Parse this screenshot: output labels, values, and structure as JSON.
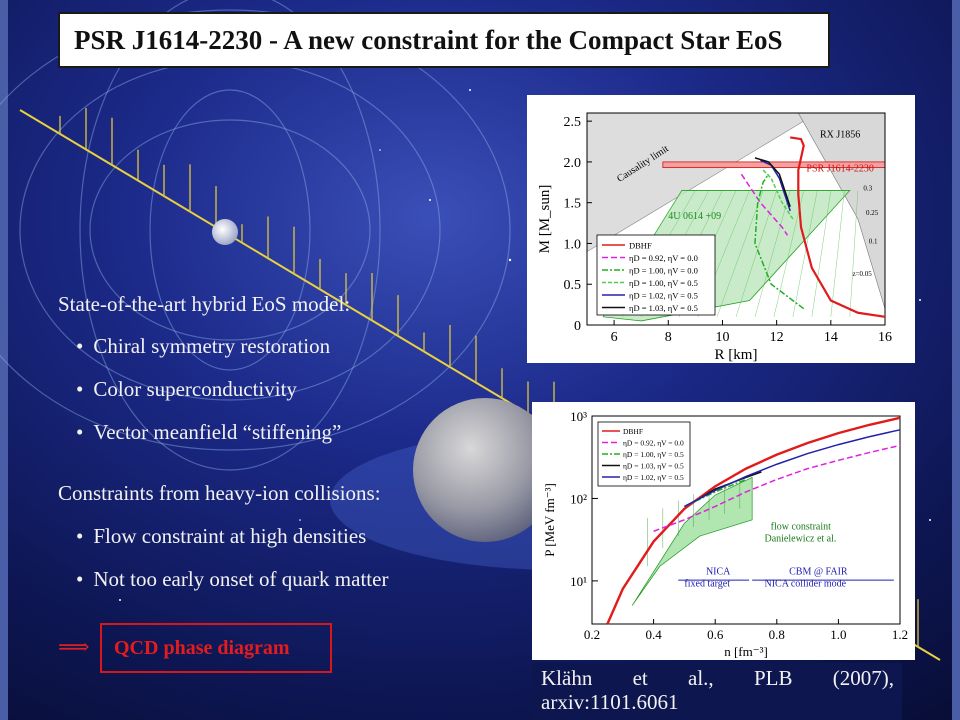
{
  "title": "PSR J1614-2230 - A new constraint for the Compact Star EoS",
  "section1": {
    "heading": "State-of-the-art hybrid EoS model:",
    "items": [
      "Chiral symmetry restoration",
      "Color superconductivity",
      "Vector meanfield “stiffening”"
    ]
  },
  "section2": {
    "heading": "Constraints from heavy-ion collisions:",
    "items": [
      "Flow constraint at high densities",
      "Not too early onset of quark matter"
    ]
  },
  "arrow_glyph": "⟹",
  "qcd_label": "QCD phase diagram",
  "citation": {
    "line1": "Klähn   et   al.,   PLB   (2007),",
    "line2": "arxiv:1101.6061"
  },
  "colors": {
    "title_bg": "#ffffff",
    "body_text": "#f2f2f2",
    "qcd_accent": "#e41c1c",
    "sky": "#101a5c"
  },
  "chart_data": [
    {
      "type": "line",
      "xlabel": "R [km]",
      "ylabel": "M [M_sun]",
      "xlim": [
        5,
        16
      ],
      "ylim": [
        0,
        2.6
      ],
      "xticks": [
        6,
        8,
        10,
        12,
        14,
        16
      ],
      "yticks": [
        0,
        0.5,
        1.0,
        1.5,
        2.0,
        2.5
      ],
      "annotations": [
        "Causality limit",
        "RX J1856",
        "PSR J1614-2230",
        "4U 0614 +09"
      ],
      "band_labels": [
        "0.3",
        "0.25",
        "0.1",
        "z=0.05"
      ],
      "series": [
        {
          "name": "DBHF",
          "color": "#e01b1b",
          "x": [
            16,
            15,
            14,
            13.3,
            12.9,
            12.8,
            12.8,
            12.9,
            13.0,
            12.9,
            12.5
          ],
          "y": [
            0.1,
            0.15,
            0.3,
            0.7,
            1.2,
            1.6,
            1.9,
            2.05,
            2.2,
            2.28,
            2.3
          ]
        },
        {
          "name": "ηD = 0.92, ηV = 0.0",
          "color": "#e020e0",
          "x": [
            10.7,
            11.0,
            11.4,
            11.8,
            12.2,
            12.4
          ],
          "y": [
            1.85,
            1.7,
            1.5,
            1.35,
            1.2,
            1.1
          ]
        },
        {
          "name": "ηD = 1.00, ηV = 0.0",
          "color": "#20b020",
          "x": [
            13.0,
            11.8,
            11.2,
            11.3,
            11.5,
            11.7
          ],
          "y": [
            0.2,
            0.5,
            1.0,
            1.5,
            1.75,
            1.85
          ]
        },
        {
          "name": "ηD = 1.00, ηV = 0.5",
          "color": "#50cc50",
          "x": [
            11.5,
            11.8,
            12.2,
            12.6
          ],
          "y": [
            1.9,
            1.8,
            1.5,
            1.3
          ]
        },
        {
          "name": "ηD = 1.02, ηV = 0.5",
          "color": "#2222aa",
          "x": [
            11.4,
            11.8,
            12.1,
            12.3,
            12.5
          ],
          "y": [
            2.02,
            1.96,
            1.8,
            1.6,
            1.4
          ]
        },
        {
          "name": "ηD = 1.03, ηV = 0.5",
          "color": "#111111",
          "x": [
            11.2,
            11.7,
            12.1,
            12.3,
            12.5
          ],
          "y": [
            2.05,
            2.0,
            1.85,
            1.65,
            1.45
          ]
        }
      ]
    },
    {
      "type": "line",
      "xlabel": "n [fm⁻³]",
      "ylabel": "P [MeV fm⁻³]",
      "xlim": [
        0.2,
        1.2
      ],
      "ylim": [
        3,
        1000
      ],
      "yscale": "log",
      "xticks": [
        0.2,
        0.4,
        0.6,
        0.8,
        1.0,
        1.2
      ],
      "ytick_labels": [
        "10¹",
        "10²",
        "10³"
      ],
      "annotations": [
        "flow constraint",
        "Danielewicz et al.",
        "NICA",
        "fixed target",
        "CBM @ FAIR",
        "NICA collider mode"
      ],
      "series": [
        {
          "name": "DBHF",
          "color": "#e01b1b",
          "x": [
            0.25,
            0.3,
            0.4,
            0.5,
            0.6,
            0.7,
            0.8,
            0.9,
            1.0,
            1.1,
            1.2
          ],
          "y": [
            3,
            8,
            30,
            75,
            140,
            230,
            340,
            470,
            620,
            780,
            950
          ]
        },
        {
          "name": "ηD = 0.92, ηV = 0.0",
          "color": "#e020e0",
          "x": [
            0.4,
            0.5,
            0.6,
            0.7,
            0.8,
            0.9,
            1.0,
            1.1,
            1.2
          ],
          "y": [
            40,
            55,
            80,
            120,
            170,
            230,
            290,
            360,
            440
          ]
        },
        {
          "name": "ηD = 1.00, ηV = 0.5",
          "color": "#20b020",
          "x": [
            0.5,
            0.6,
            0.7
          ],
          "y": [
            80,
            120,
            170
          ]
        },
        {
          "name": "ηD = 1.03, ηV = 0.5",
          "color": "#111111",
          "x": [
            0.55,
            0.6,
            0.7,
            0.75
          ],
          "y": [
            100,
            130,
            180,
            210
          ]
        },
        {
          "name": "ηD = 1.02, ηV = 0.5",
          "color": "#2222aa",
          "x": [
            0.5,
            0.6,
            0.7,
            0.8,
            0.9,
            1.0,
            1.1,
            1.2
          ],
          "y": [
            80,
            125,
            185,
            260,
            350,
            450,
            560,
            680
          ]
        }
      ]
    }
  ]
}
